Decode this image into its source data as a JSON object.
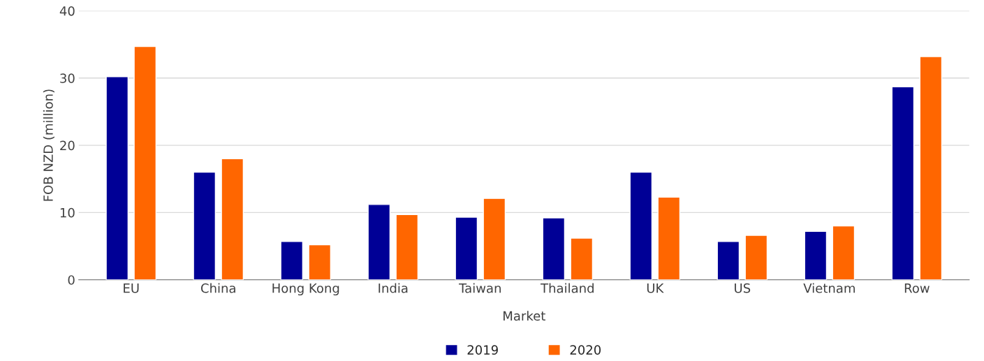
{
  "chart_data": {
    "type": "bar",
    "xlabel": "Market",
    "ylabel": "FOB NZD (million)",
    "categories": [
      "EU",
      "China",
      "Hong Kong",
      "India",
      "Taiwan",
      "Thailand",
      "UK",
      "US",
      "Vietnam",
      "Row"
    ],
    "series": [
      {
        "name": "2019",
        "color": "#000096",
        "values": [
          30.2,
          16.0,
          5.7,
          11.2,
          9.3,
          9.2,
          16.0,
          5.7,
          7.2,
          28.7
        ]
      },
      {
        "name": "2020",
        "color": "#ff6600",
        "values": [
          34.7,
          18.0,
          5.2,
          9.7,
          12.1,
          6.2,
          12.3,
          6.6,
          8.0,
          33.2
        ]
      }
    ],
    "ylim": [
      0,
      40
    ],
    "yticks": [
      0,
      10,
      20,
      30,
      40
    ],
    "grid": "y",
    "legend": "bottom"
  }
}
